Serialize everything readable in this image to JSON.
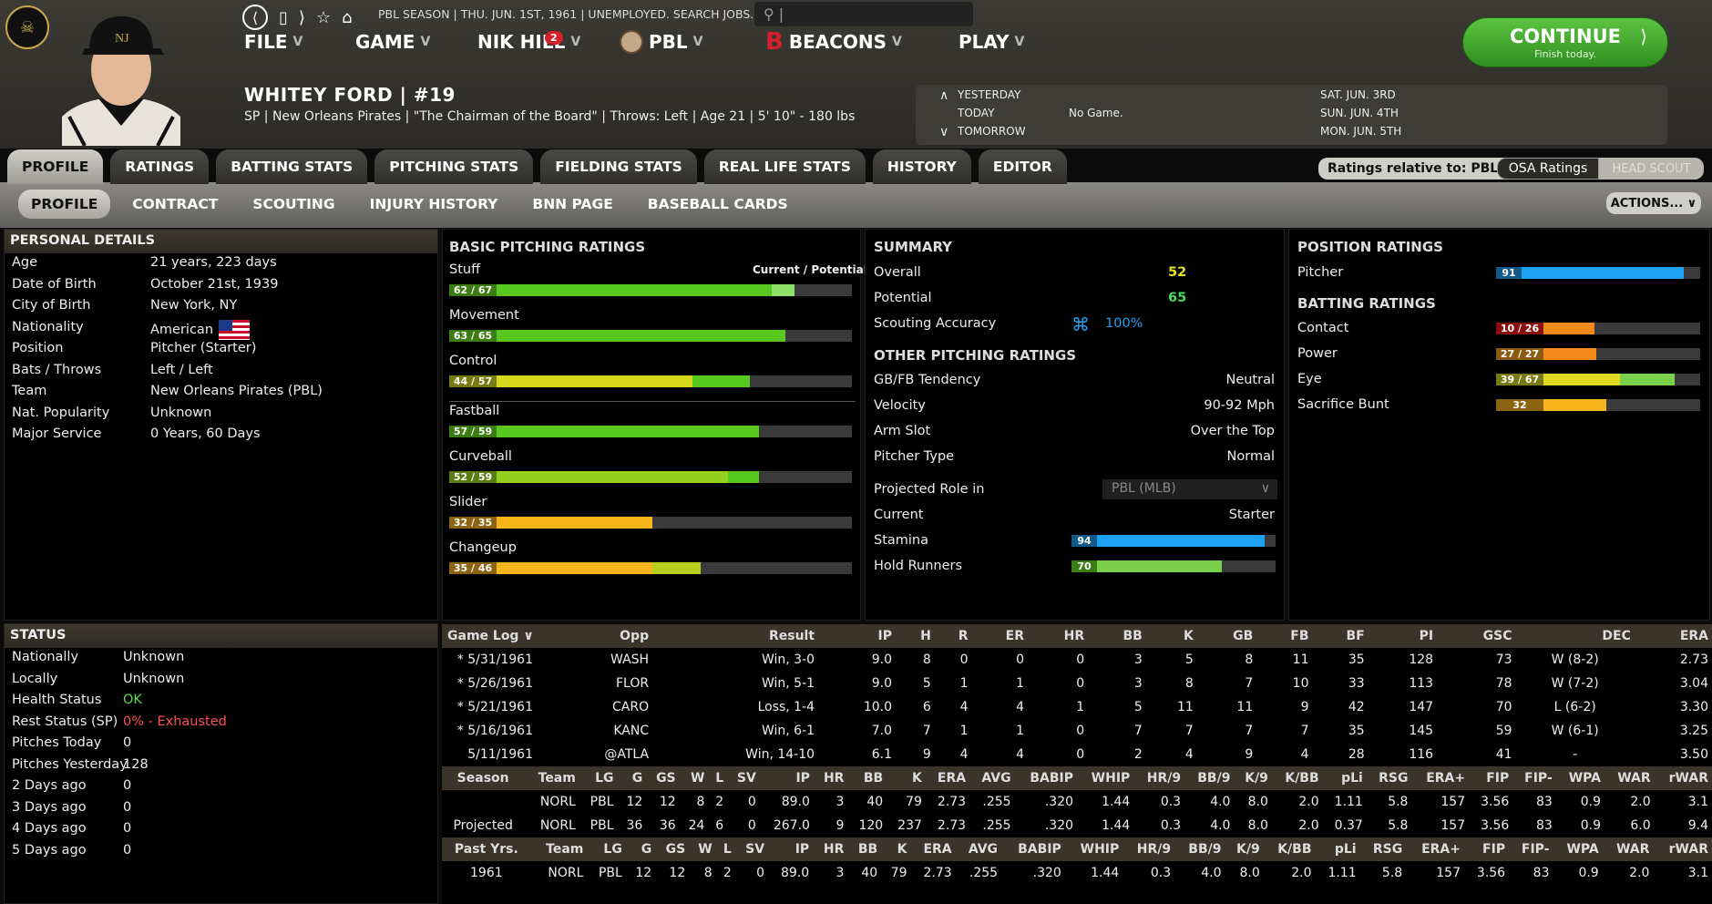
{
  "topbar": {
    "status_line": "PBL SEASON | THU. JUN. 1ST, 1961 | UNEMPLOYED. SEARCH JOBS...",
    "menu": [
      {
        "label": "FILE"
      },
      {
        "label": "GAME"
      },
      {
        "label": "NIK HILL",
        "badge": "2"
      },
      {
        "label": "PBL"
      },
      {
        "label": "BEACONS"
      },
      {
        "label": "PLAY"
      }
    ],
    "continue_label": "CONTINUE",
    "continue_sub": "Finish today."
  },
  "player": {
    "name": "WHITEY FORD | #19",
    "desc": "SP | New Orleans Pirates | \"The Chairman of the Board\" | Throws: Left | Age 21 | 5' 10\" - 180 lbs"
  },
  "schedule": {
    "yesterday": "YESTERDAY",
    "today": "TODAY",
    "tomorrow": "TOMORROW",
    "today_game": "No Game.",
    "dates": [
      "SAT. JUN. 3RD",
      "SUN. JUN. 4TH",
      "MON. JUN. 5TH"
    ]
  },
  "tabs_primary": [
    "PROFILE",
    "RATINGS",
    "BATTING STATS",
    "PITCHING STATS",
    "FIELDING STATS",
    "REAL LIFE STATS",
    "HISTORY",
    "EDITOR"
  ],
  "tabs_secondary": [
    "PROFILE",
    "CONTRACT",
    "SCOUTING",
    "INJURY HISTORY",
    "BNN PAGE",
    "BASEBALL CARDS"
  ],
  "ratings_relative": "Ratings relative to: PBL",
  "osa_ratings": "OSA Ratings",
  "head_scout": "HEAD SCOUT",
  "actions": "ACTIONS...",
  "personal": {
    "header": "PERSONAL DETAILS",
    "rows": [
      {
        "k": "Age",
        "v": "21 years, 223 days"
      },
      {
        "k": "Date of Birth",
        "v": "October 21st, 1939"
      },
      {
        "k": "City of Birth",
        "v": "New York, NY"
      },
      {
        "k": "Nationality",
        "v": "American"
      },
      {
        "k": "Position",
        "v": "Pitcher (Starter)"
      },
      {
        "k": "Bats / Throws",
        "v": "Left / Left"
      },
      {
        "k": "Team",
        "v": "New Orleans Pirates (PBL)"
      },
      {
        "k": "Nat. Popularity",
        "v": "Unknown"
      },
      {
        "k": "Major Service",
        "v": "0 Years, 60 Days"
      }
    ]
  },
  "status": {
    "header": "STATUS",
    "rows": [
      {
        "k": "Nationally",
        "v": "Unknown"
      },
      {
        "k": "Locally",
        "v": "Unknown"
      },
      {
        "k": "Health Status",
        "v": "OK"
      },
      {
        "k": "Rest Status (SP)",
        "v": "0% - Exhausted"
      },
      {
        "k": "Pitches Today",
        "v": "0"
      },
      {
        "k": "Pitches Yesterday",
        "v": "128"
      },
      {
        "k": "2 Days ago",
        "v": "0"
      },
      {
        "k": "3 Days ago",
        "v": "0"
      },
      {
        "k": "4 Days ago",
        "v": "0"
      },
      {
        "k": "5 Days ago",
        "v": "0"
      }
    ]
  },
  "pitching": {
    "header": "BASIC PITCHING RATINGS",
    "cur_pot_label": "Current / Potential",
    "rows": [
      {
        "name": "Stuff",
        "label": "62 / 67",
        "cur": 62,
        "pot": 67,
        "color": "#57c81e",
        "pcolor": "#8ee06a",
        "box": "#3b7d12"
      },
      {
        "name": "Movement",
        "label": "63 / 65",
        "cur": 63,
        "pot": 65,
        "color": "#57c81e",
        "pcolor": "#57c81e",
        "box": "#3b7d12"
      },
      {
        "name": "Control",
        "label": "44 / 57",
        "cur": 44,
        "pot": 57,
        "color": "#d7d81e",
        "pcolor": "#57c81e",
        "box": "#7a7a12"
      },
      {
        "name": "Fastball",
        "label": "57 / 59",
        "cur": 57,
        "pot": 59,
        "color": "#57c81e",
        "pcolor": "#57c81e",
        "box": "#3b7d12"
      },
      {
        "name": "Curveball",
        "label": "52 / 59",
        "cur": 52,
        "pot": 59,
        "color": "#94d01e",
        "pcolor": "#57c81e",
        "box": "#5a7d12"
      },
      {
        "name": "Slider",
        "label": "32 / 35",
        "cur": 32,
        "pot": 35,
        "color": "#f4b41a",
        "pcolor": "#f4b41a",
        "box": "#8a6410"
      },
      {
        "name": "Changeup",
        "label": "35 / 46",
        "cur": 35,
        "pot": 46,
        "color": "#f4b41a",
        "pcolor": "#b7d01e",
        "box": "#8a6410"
      }
    ]
  },
  "summary": {
    "header": "SUMMARY",
    "overall_k": "Overall",
    "overall_v": "52",
    "potential_k": "Potential",
    "potential_v": "65",
    "scouting_k": "Scouting Accuracy",
    "scouting_v": "100%",
    "other_header": "OTHER PITCHING RATINGS",
    "other": [
      {
        "k": "GB/FB Tendency",
        "v": "Neutral"
      },
      {
        "k": "Velocity",
        "v": "90-92 Mph"
      },
      {
        "k": "Arm Slot",
        "v": "Over the Top"
      },
      {
        "k": "Pitcher Type",
        "v": "Normal"
      }
    ],
    "role_k": "Projected Role in",
    "role_sel": "PBL (MLB)",
    "current_k": "Current",
    "current_v": "Starter",
    "stamina_k": "Stamina",
    "stamina_v": 94,
    "hold_k": "Hold Runners",
    "hold_v": 70
  },
  "position": {
    "header": "POSITION RATINGS",
    "pitcher_k": "Pitcher",
    "pitcher_v": 91,
    "batting_header": "BATTING RATINGS",
    "batting": [
      {
        "k": "Contact",
        "label": "10 / 26",
        "cur": 10,
        "pot": 26,
        "box": "#8a1010",
        "color": "#f48a1a",
        "pcolor": "#f48a1a"
      },
      {
        "k": "Power",
        "label": "27 / 27",
        "cur": 27,
        "pot": 27,
        "box": "#8a5a10",
        "color": "#f48a1a",
        "pcolor": "#f48a1a"
      },
      {
        "k": "Eye",
        "label": "39 / 67",
        "cur": 39,
        "pot": 67,
        "box": "#7a7a12",
        "color": "#e0d81e",
        "pcolor": "#7ad04a"
      },
      {
        "k": "Sacrifice Bunt",
        "label": "32",
        "cur": 32,
        "pot": 32,
        "box": "#8a6410",
        "color": "#f4b41a",
        "pcolor": "#f4b41a"
      }
    ]
  },
  "gamelog": {
    "dropdown": "Game Log",
    "headers": [
      "Opp",
      "Result",
      "IP",
      "H",
      "R",
      "ER",
      "HR",
      "BB",
      "K",
      "GB",
      "FB",
      "BF",
      "PI",
      "GSC",
      "DEC",
      "ERA"
    ],
    "rows": [
      [
        "* 5/31/1961",
        "WASH",
        "Win, 3-0",
        "9.0",
        "8",
        "0",
        "0",
        "0",
        "3",
        "5",
        "8",
        "11",
        "35",
        "128",
        "73",
        "W (8-2)",
        "2.73"
      ],
      [
        "* 5/26/1961",
        "FLOR",
        "Win, 5-1",
        "9.0",
        "5",
        "1",
        "1",
        "0",
        "3",
        "8",
        "7",
        "10",
        "33",
        "113",
        "78",
        "W (7-2)",
        "3.04"
      ],
      [
        "* 5/21/1961",
        "CARO",
        "Loss, 1-4",
        "10.0",
        "6",
        "4",
        "4",
        "1",
        "5",
        "11",
        "11",
        "9",
        "42",
        "147",
        "70",
        "L (6-2)",
        "3.30"
      ],
      [
        "* 5/16/1961",
        "KANC",
        "Win, 6-1",
        "7.0",
        "7",
        "1",
        "1",
        "0",
        "7",
        "7",
        "7",
        "7",
        "35",
        "145",
        "59",
        "W (6-1)",
        "3.25"
      ],
      [
        "5/11/1961",
        "@ATLA",
        "Win, 14-10",
        "6.1",
        "9",
        "4",
        "4",
        "0",
        "2",
        "4",
        "9",
        "4",
        "28",
        "116",
        "41",
        "-",
        "3.50"
      ]
    ],
    "season_headers": [
      "Season",
      "Team",
      "LG",
      "G",
      "GS",
      "W",
      "L",
      "SV",
      "IP",
      "HR",
      "BB",
      "K",
      "ERA",
      "AVG",
      "BABIP",
      "WHIP",
      "HR/9",
      "BB/9",
      "K/9",
      "K/BB",
      "pLi",
      "RSG",
      "ERA+",
      "FIP",
      "FIP-",
      "WPA",
      "WAR",
      "rWAR"
    ],
    "season_rows": [
      [
        "",
        "NORL",
        "PBL",
        "12",
        "12",
        "8",
        "2",
        "0",
        "89.0",
        "3",
        "40",
        "79",
        "2.73",
        ".255",
        ".320",
        "1.44",
        "0.3",
        "4.0",
        "8.0",
        "2.0",
        "1.11",
        "5.8",
        "157",
        "3.56",
        "83",
        "0.9",
        "2.0",
        "3.1"
      ],
      [
        "Projected",
        "NORL",
        "PBL",
        "36",
        "36",
        "24",
        "6",
        "0",
        "267.0",
        "9",
        "120",
        "237",
        "2.73",
        ".255",
        ".320",
        "1.44",
        "0.3",
        "4.0",
        "8.0",
        "2.0",
        "0.37",
        "5.8",
        "157",
        "3.56",
        "83",
        "0.9",
        "6.0",
        "9.4"
      ]
    ],
    "past_headers": [
      "Past Yrs.",
      "Team",
      "LG",
      "G",
      "GS",
      "W",
      "L",
      "SV",
      "IP",
      "HR",
      "BB",
      "K",
      "ERA",
      "AVG",
      "BABIP",
      "WHIP",
      "HR/9",
      "BB/9",
      "K/9",
      "K/BB",
      "pLi",
      "RSG",
      "ERA+",
      "FIP",
      "FIP-",
      "WPA",
      "WAR",
      "rWAR"
    ],
    "past_rows": [
      [
        "1961",
        "NORL",
        "PBL",
        "12",
        "12",
        "8",
        "2",
        "0",
        "89.0",
        "3",
        "40",
        "79",
        "2.73",
        ".255",
        ".320",
        "1.44",
        "0.3",
        "4.0",
        "8.0",
        "2.0",
        "1.11",
        "5.8",
        "157",
        "3.56",
        "83",
        "0.9",
        "2.0",
        "3.1"
      ]
    ]
  },
  "colors": {
    "accent_green": "#3fb52a",
    "ok": "#5ddb4a",
    "exhausted": "#ff5050",
    "overall": "#e8e21e",
    "potential": "#4adb5a",
    "blue_bar": "#1da1f2"
  }
}
